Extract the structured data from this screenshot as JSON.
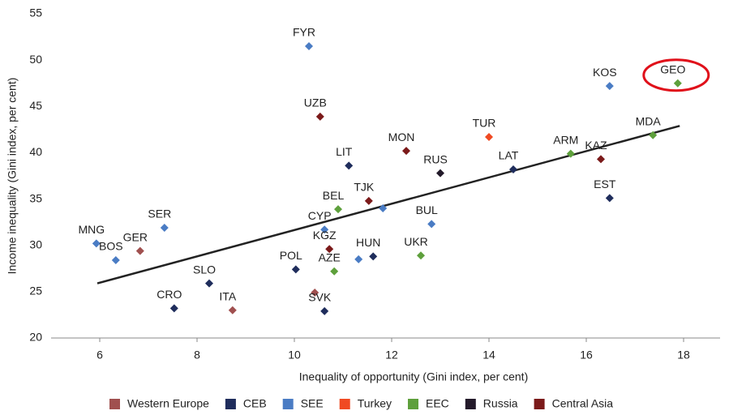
{
  "chart_data": {
    "type": "scatter",
    "xlabel": "Inequality of opportunity (Gini index, per cent)",
    "ylabel": "Income inequality (Gini index, per cent)",
    "xlim": [
      5,
      18.75
    ],
    "xticks": [
      6,
      8,
      10,
      12,
      14,
      16,
      18
    ],
    "ylim": [
      20,
      55
    ],
    "yticks": [
      20,
      25,
      30,
      35,
      40,
      45,
      50,
      55
    ],
    "grid": false,
    "legend": "bottom",
    "series": [
      {
        "name": "Western Europe",
        "color": "#a0504f",
        "x": [
          6.83,
          8.73,
          10.42
        ],
        "values": [
          29.4,
          23.0,
          24.9
        ],
        "labels": [
          "GER",
          "ITA",
          null
        ]
      },
      {
        "name": "CEB",
        "color": "#1f2d5c",
        "x": [
          8.25,
          7.53,
          11.12,
          10.03,
          10.62,
          11.62,
          14.5,
          16.48
        ],
        "values": [
          25.9,
          23.2,
          38.6,
          27.4,
          22.9,
          28.8,
          38.2,
          35.1
        ],
        "labels": [
          "SLO",
          "CRO",
          "LIT",
          "POL",
          "SVK",
          "HUN",
          "LAT",
          "EST"
        ]
      },
      {
        "name": "SEE",
        "color": "#4a7cc4",
        "x": [
          5.93,
          6.33,
          7.33,
          10.3,
          10.62,
          11.32,
          12.82,
          11.82,
          16.48
        ],
        "values": [
          30.2,
          28.4,
          31.9,
          51.5,
          31.7,
          28.5,
          32.3,
          34.0,
          47.2
        ],
        "labels": [
          "MNG",
          "BOS",
          "SER",
          "FYR",
          "CYP",
          null,
          "BUL",
          null,
          "KOS"
        ]
      },
      {
        "name": "Turkey",
        "color": "#f04a23",
        "x": [
          14.0
        ],
        "values": [
          41.7
        ],
        "labels": [
          "TUR"
        ]
      },
      {
        "name": "EEC",
        "color": "#5ea03c",
        "x": [
          10.9,
          10.82,
          12.6,
          15.68,
          17.37,
          17.88
        ],
        "values": [
          33.9,
          27.2,
          28.9,
          39.9,
          41.9,
          47.5
        ],
        "labels": [
          "BEL",
          "AZE",
          "UKR",
          "ARM",
          "MDA",
          "GEO"
        ]
      },
      {
        "name": "Russia",
        "color": "#231a2a",
        "x": [
          13.0
        ],
        "values": [
          37.8
        ],
        "labels": [
          "RUS"
        ]
      },
      {
        "name": "Central Asia",
        "color": "#7b1a1a",
        "x": [
          10.53,
          11.53,
          10.72,
          12.3,
          16.3
        ],
        "values": [
          43.9,
          34.8,
          29.6,
          40.2,
          39.3
        ],
        "labels": [
          "UZB",
          "TJK",
          "KGZ",
          "MON",
          "KAZ"
        ]
      }
    ],
    "trendline": {
      "x": [
        5.95,
        17.92
      ],
      "values": [
        25.9,
        42.9
      ]
    }
  }
}
